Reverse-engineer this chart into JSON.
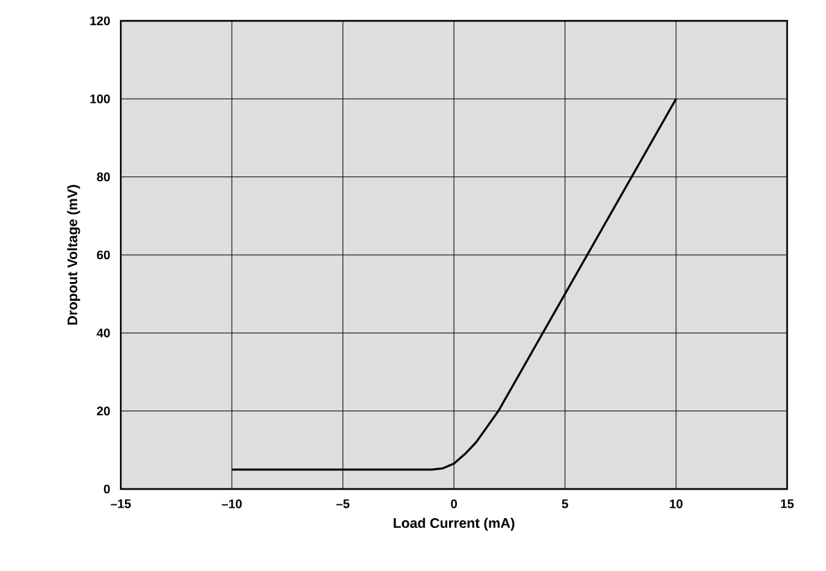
{
  "chart_data": {
    "type": "line",
    "xlabel": "Load Current (mA)",
    "ylabel": "Dropout Voltage (mV)",
    "x": [
      -10,
      -1,
      -0.5,
      0,
      0.5,
      1,
      1.5,
      2,
      10
    ],
    "series": [
      {
        "color": "#000000",
        "values": [
          5,
          5,
          5.3,
          6.5,
          9,
          12,
          16,
          20,
          100
        ]
      }
    ],
    "xlim": [
      -15,
      15
    ],
    "ylim": [
      0,
      120
    ],
    "xticks": [
      {
        "value": -15,
        "label": "–15"
      },
      {
        "value": -10,
        "label": "–10"
      },
      {
        "value": -5,
        "label": "–5"
      },
      0,
      5,
      10,
      15
    ],
    "yticks": [
      0,
      20,
      40,
      60,
      80,
      100,
      120
    ],
    "grid": true,
    "marker": "none",
    "line_style": "solid"
  }
}
